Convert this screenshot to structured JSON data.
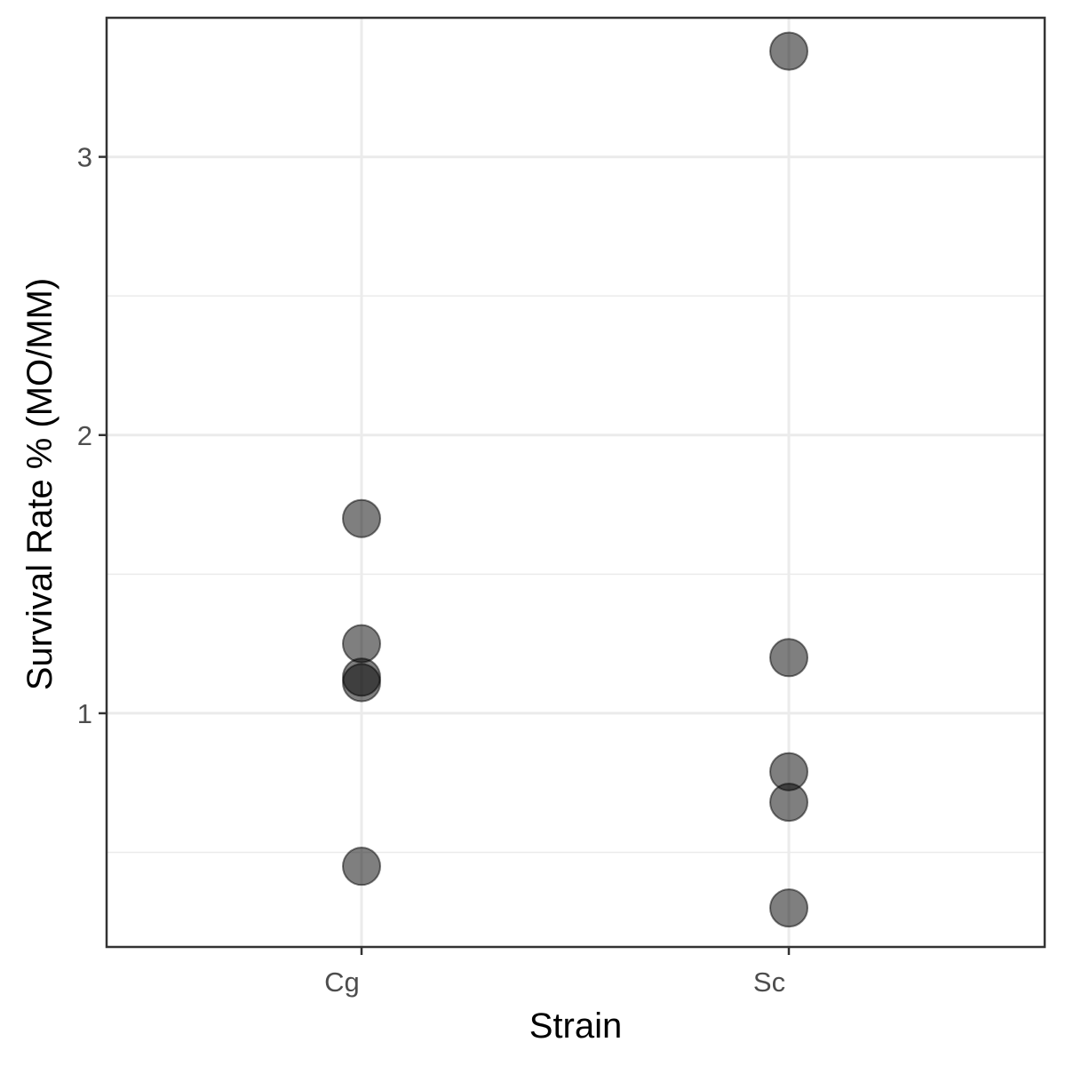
{
  "chart_data": {
    "type": "scatter",
    "xlabel": "Strain",
    "ylabel": "Survival Rate % (MO/MM)",
    "categories": [
      "Cg",
      "Sc"
    ],
    "ylim": [
      0.16,
      3.5
    ],
    "yticks": [
      "1",
      "2",
      "3"
    ],
    "grid": true,
    "point_color": "#000000",
    "points": [
      {
        "x": "Cg",
        "y": 1.7
      },
      {
        "x": "Cg",
        "y": 1.25
      },
      {
        "x": "Cg",
        "y": 1.13
      },
      {
        "x": "Cg",
        "y": 1.11
      },
      {
        "x": "Cg",
        "y": 0.45
      },
      {
        "x": "Sc",
        "y": 3.38
      },
      {
        "x": "Sc",
        "y": 1.2
      },
      {
        "x": "Sc",
        "y": 0.79
      },
      {
        "x": "Sc",
        "y": 0.68
      },
      {
        "x": "Sc",
        "y": 0.3
      }
    ]
  }
}
